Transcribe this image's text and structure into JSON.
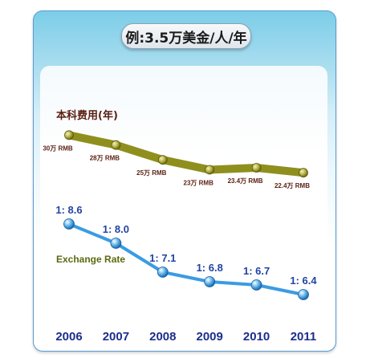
{
  "title": "例:3.5万美金/人/年",
  "chart_data": [
    {
      "type": "line",
      "name": "本科费用(年)",
      "title": "本科费用(年)",
      "x": [
        "2006",
        "2007",
        "2008",
        "2009",
        "2010",
        "2011"
      ],
      "values": [
        30,
        28,
        25,
        23,
        23.4,
        22.4
      ],
      "unit": "万 RMB",
      "labels": [
        "30万 RMB",
        "28万 RMB",
        "25万 RMB",
        "23万 RMB",
        "23.4万 RMB",
        "22.4万 RMB"
      ],
      "color": "#8f8f1e",
      "ylim": [
        20,
        32
      ]
    },
    {
      "type": "line",
      "name": "Exchange Rate",
      "title": "Exchange Rate",
      "x": [
        "2006",
        "2007",
        "2008",
        "2009",
        "2010",
        "2011"
      ],
      "values": [
        8.6,
        8.0,
        7.1,
        6.8,
        6.7,
        6.4
      ],
      "labels": [
        "1: 8.6",
        "1: 8.0",
        "1: 7.1",
        "1: 6.8",
        "1: 6.7",
        "1: 6.4"
      ],
      "color": "#3b9be4",
      "ylim": [
        6.0,
        9.0
      ]
    }
  ],
  "x_axis": {
    "ticks": [
      "2006",
      "2007",
      "2008",
      "2009",
      "2010",
      "2011"
    ]
  }
}
